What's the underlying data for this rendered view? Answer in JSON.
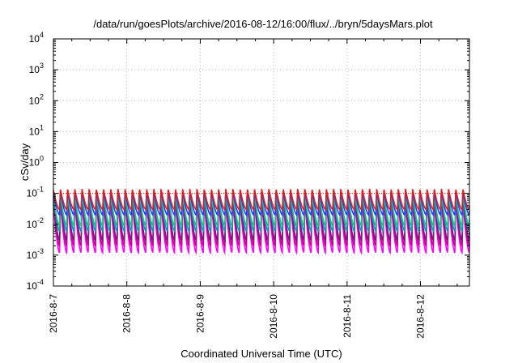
{
  "chart_data": {
    "type": "line",
    "title": "/data/run/goesPlots/archive/2016-08-12/16:00/flux/../bryn/5daysMars.plot",
    "xlabel": "Coordinated Universal Time (UTC)",
    "ylabel": "cSv/day",
    "yscale": "log",
    "ylim": [
      0.0001,
      10000
    ],
    "y_ticks": [
      {
        "base": "10",
        "exp": "-4"
      },
      {
        "base": "10",
        "exp": "-3"
      },
      {
        "base": "10",
        "exp": "-2"
      },
      {
        "base": "10",
        "exp": "-1"
      },
      {
        "base": "10",
        "exp": "0"
      },
      {
        "base": "10",
        "exp": "1"
      },
      {
        "base": "10",
        "exp": "2"
      },
      {
        "base": "10",
        "exp": "3"
      },
      {
        "base": "10",
        "exp": "4"
      }
    ],
    "x_ticks": [
      "2016-8-7",
      "2016-8-8",
      "2016-8-9",
      "2016-8-10",
      "2016-8-11",
      "2016-8-12"
    ],
    "xlim": [
      "2016-08-07 00:00",
      "2016-08-12 16:00"
    ],
    "grid": true,
    "reference_line": {
      "value": 0.1,
      "color": "#e00000",
      "style": "dotted"
    },
    "orbit_period_hours": 2.35,
    "series": [
      {
        "color": "#ff00ff",
        "peak": 0.055,
        "trough": 0.0012
      },
      {
        "color": "#cc0099",
        "peak": 0.07,
        "trough": 0.002
      },
      {
        "color": "#7a1a7a",
        "peak": 0.09,
        "trough": 0.003
      },
      {
        "color": "#00a0c0",
        "peak": 0.1,
        "trough": 0.006
      },
      {
        "color": "#20c080",
        "peak": 0.095,
        "trough": 0.009
      },
      {
        "color": "#2040ff",
        "peak": 0.12,
        "trough": 0.02
      },
      {
        "color": "#e02020",
        "peak": 0.14,
        "trough": 0.03
      }
    ]
  }
}
